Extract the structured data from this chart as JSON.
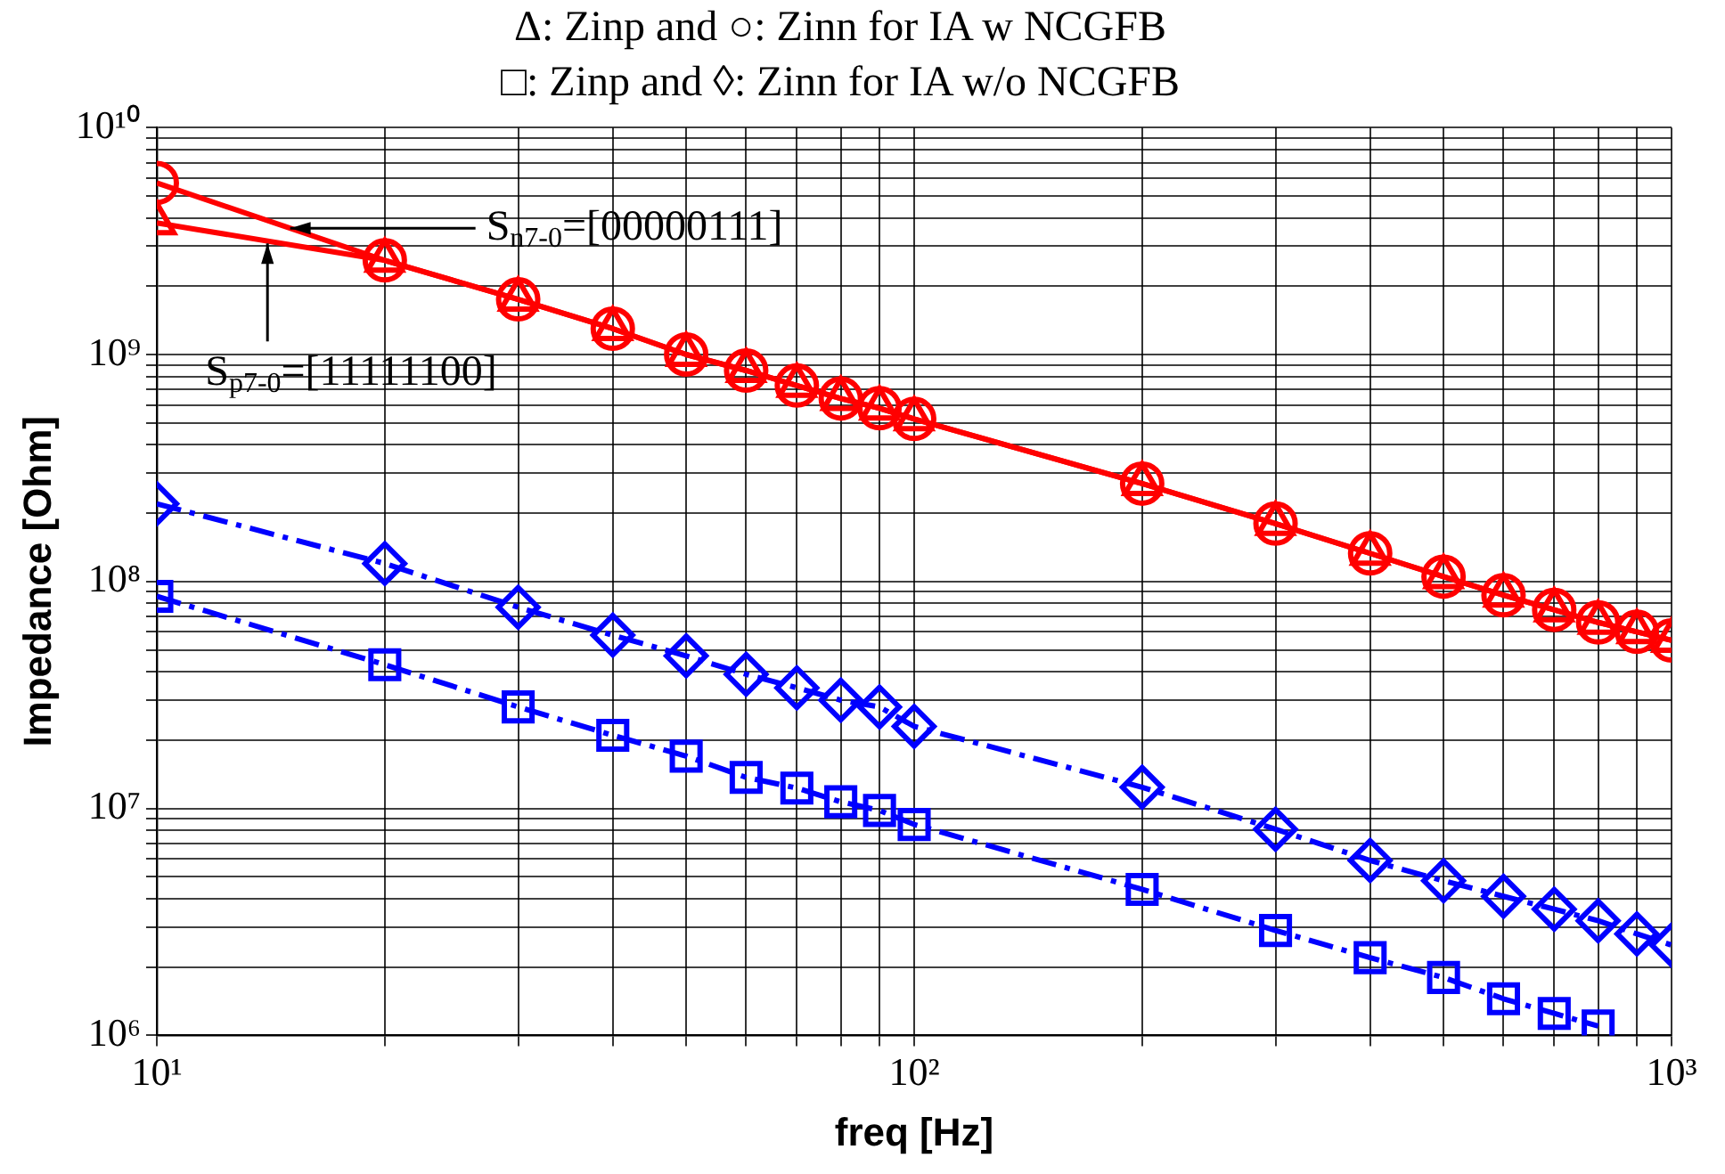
{
  "chart_data": {
    "type": "line",
    "title": "Δ: Zinp and ○: Zinn for IA w NCGFB",
    "subtitle": "□: Zinp and ◊: Zinn for IA w/o NCGFB",
    "xlabel": "freq [Hz]",
    "ylabel": "Impedance [Ohm]",
    "x": [
      10,
      20,
      30,
      40,
      50,
      60,
      70,
      80,
      90,
      100,
      200,
      300,
      400,
      500,
      600,
      700,
      800,
      900,
      1000
    ],
    "series": [
      {
        "color": "#ff0000",
        "marker": "circle",
        "line_style": "solid",
        "values": [
          5700000000.0,
          2600000000.0,
          1750000000.0,
          1300000000.0,
          1000000000.0,
          850000000.0,
          730000000.0,
          640000000.0,
          580000000.0,
          520000000.0,
          270000000.0,
          180000000.0,
          133000000.0,
          105000000.0,
          87000000.0,
          75000000.0,
          66000000.0,
          60000000.0,
          55000000.0
        ]
      },
      {
        "color": "#ff0000",
        "marker": "triangle",
        "line_style": "solid",
        "values": [
          3800000000.0,
          2600000000.0,
          1750000000.0,
          1300000000.0,
          1000000000.0,
          850000000.0,
          730000000.0,
          640000000.0,
          580000000.0,
          520000000.0,
          270000000.0,
          180000000.0,
          133000000.0,
          105000000.0,
          87000000.0,
          75000000.0,
          66000000.0,
          60000000.0,
          55000000.0
        ]
      },
      {
        "color": "#0000ff",
        "marker": "diamond",
        "line_style": "dashed",
        "values": [
          220000000.0,
          120000000.0,
          77000000.0,
          58000000.0,
          47000000.0,
          39000000.0,
          34000000.0,
          30000000.0,
          28000000.0,
          23000000.0,
          12400000.0,
          8100000.0,
          5900000.0,
          4800000.0,
          4100000.0,
          3600000.0,
          3200000.0,
          2800000.0,
          2500000.0
        ]
      },
      {
        "color": "#0000ff",
        "marker": "square",
        "line_style": "dashed",
        "values": [
          86000000.0,
          43000000.0,
          28000000.0,
          21000000.0,
          17000000.0,
          13700000.0,
          12300000.0,
          10700000.0,
          9800000.0,
          8500000.0,
          4400000.0,
          2900000.0,
          2200000.0,
          1800000.0,
          1450000.0,
          1250000.0,
          1100000.0,
          null,
          null
        ]
      }
    ],
    "log": "xy",
    "grid": true,
    "legend": false,
    "xlim": [
      10,
      1000
    ],
    "ylim": [
      1000000.0,
      10000000000.0
    ],
    "xticks": [
      {
        "value": 10,
        "label": "10¹"
      },
      {
        "value": 20,
        "label": null
      },
      {
        "value": 30,
        "label": null
      },
      {
        "value": 40,
        "label": null
      },
      {
        "value": 50,
        "label": null
      },
      {
        "value": 60,
        "label": null
      },
      {
        "value": 70,
        "label": null
      },
      {
        "value": 80,
        "label": null
      },
      {
        "value": 90,
        "label": null
      },
      {
        "value": 100,
        "label": "10²"
      },
      {
        "value": 200,
        "label": null
      },
      {
        "value": 300,
        "label": null
      },
      {
        "value": 400,
        "label": null
      },
      {
        "value": 500,
        "label": null
      },
      {
        "value": 600,
        "label": null
      },
      {
        "value": 700,
        "label": null
      },
      {
        "value": 800,
        "label": null
      },
      {
        "value": 900,
        "label": null
      },
      {
        "value": 1000,
        "label": "10³"
      }
    ],
    "yticks": [
      {
        "value": 1000000.0,
        "label": "10⁶"
      },
      {
        "value": 2000000.0,
        "label": null
      },
      {
        "value": 3000000.0,
        "label": null
      },
      {
        "value": 4000000.0,
        "label": null
      },
      {
        "value": 5000000.0,
        "label": null
      },
      {
        "value": 6000000.0,
        "label": null
      },
      {
        "value": 7000000.0,
        "label": null
      },
      {
        "value": 8000000.0,
        "label": null
      },
      {
        "value": 9000000.0,
        "label": null
      },
      {
        "value": 10000000.0,
        "label": "10⁷"
      },
      {
        "value": 20000000.0,
        "label": null
      },
      {
        "value": 30000000.0,
        "label": null
      },
      {
        "value": 40000000.0,
        "label": null
      },
      {
        "value": 50000000.0,
        "label": null
      },
      {
        "value": 60000000.0,
        "label": null
      },
      {
        "value": 70000000.0,
        "label": null
      },
      {
        "value": 80000000.0,
        "label": null
      },
      {
        "value": 90000000.0,
        "label": null
      },
      {
        "value": 100000000.0,
        "label": "10⁸"
      },
      {
        "value": 200000000.0,
        "label": null
      },
      {
        "value": 300000000.0,
        "label": null
      },
      {
        "value": 400000000.0,
        "label": null
      },
      {
        "value": 500000000.0,
        "label": null
      },
      {
        "value": 600000000.0,
        "label": null
      },
      {
        "value": 700000000.0,
        "label": null
      },
      {
        "value": 800000000.0,
        "label": null
      },
      {
        "value": 900000000.0,
        "label": null
      },
      {
        "value": 1000000000.0,
        "label": "10⁹"
      },
      {
        "value": 2000000000.0,
        "label": null
      },
      {
        "value": 3000000000.0,
        "label": null
      },
      {
        "value": 4000000000.0,
        "label": null
      },
      {
        "value": 5000000000.0,
        "label": null
      },
      {
        "value": 6000000000.0,
        "label": null
      },
      {
        "value": 7000000000.0,
        "label": null
      },
      {
        "value": 8000000000.0,
        "label": null
      },
      {
        "value": 9000000000.0,
        "label": null
      },
      {
        "value": 10000000000.0,
        "label": "10¹⁰"
      }
    ],
    "annotations": [
      {
        "text": "S$_{n7-0}$=[00000111]",
        "x": 15,
        "y": 3600000000.0
      },
      {
        "text": "S$_{p7-0}$=[11111100]",
        "x": 14,
        "y": 3200000000.0
      }
    ]
  }
}
